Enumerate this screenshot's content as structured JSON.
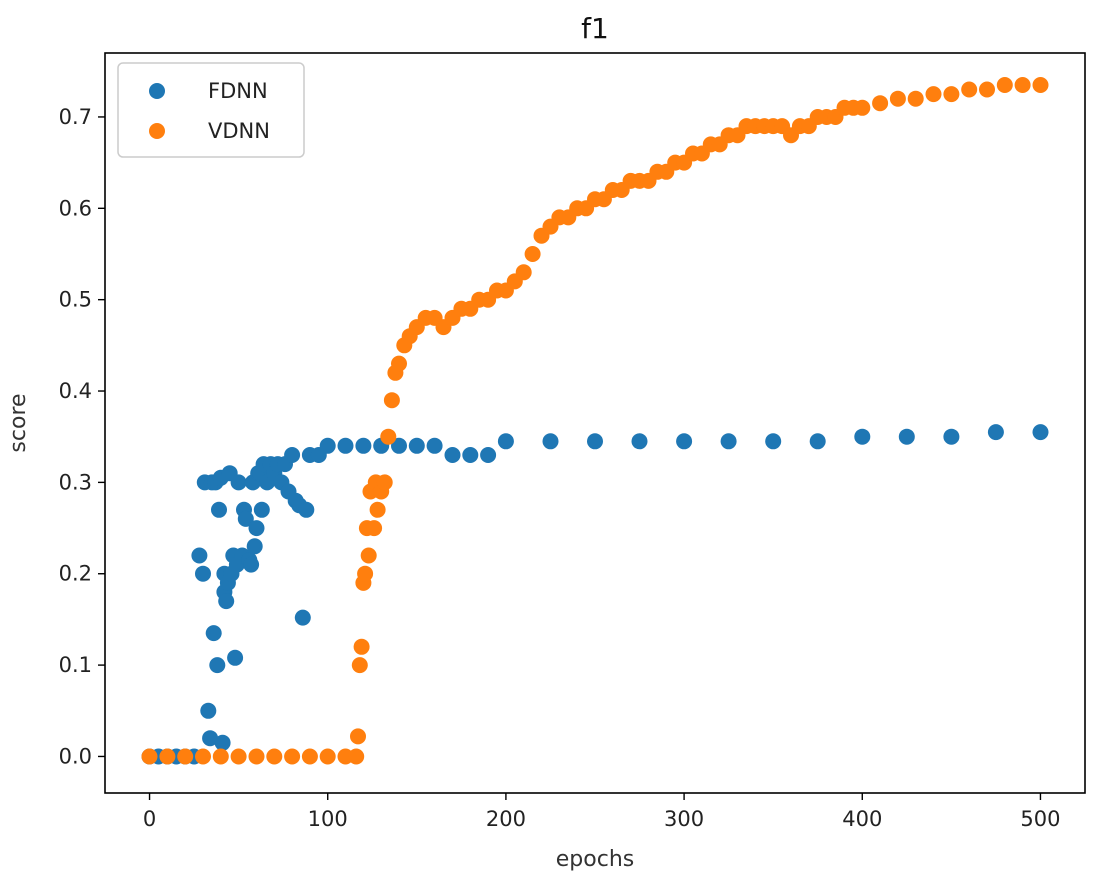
{
  "chart_data": {
    "type": "scatter",
    "title": "f1",
    "xlabel": "epochs",
    "ylabel": "score",
    "xlim": [
      -25,
      525
    ],
    "ylim": [
      -0.04,
      0.77
    ],
    "xticks": [
      0,
      100,
      200,
      300,
      400,
      500
    ],
    "yticks": [
      0.0,
      0.1,
      0.2,
      0.3,
      0.4,
      0.5,
      0.6,
      0.7
    ],
    "grid": false,
    "legend_position": "top-left",
    "series": [
      {
        "name": "FDNN",
        "color": "#1f77b4",
        "points": [
          [
            0,
            0
          ],
          [
            5,
            0
          ],
          [
            10,
            0
          ],
          [
            15,
            0
          ],
          [
            20,
            0
          ],
          [
            25,
            0
          ],
          [
            28,
            0.22
          ],
          [
            30,
            0.2
          ],
          [
            31,
            0.3
          ],
          [
            33,
            0.05
          ],
          [
            34,
            0.02
          ],
          [
            35,
            0.3
          ],
          [
            36,
            0.135
          ],
          [
            37,
            0.3
          ],
          [
            38,
            0.1
          ],
          [
            39,
            0.27
          ],
          [
            40,
            0.305
          ],
          [
            41,
            0.015
          ],
          [
            42,
            0.2
          ],
          [
            42,
            0.18
          ],
          [
            43,
            0.17
          ],
          [
            44,
            0.19
          ],
          [
            45,
            0.31
          ],
          [
            46,
            0.2
          ],
          [
            47,
            0.22
          ],
          [
            48,
            0.108
          ],
          [
            49,
            0.21
          ],
          [
            50,
            0.3
          ],
          [
            52,
            0.22
          ],
          [
            53,
            0.27
          ],
          [
            54,
            0.26
          ],
          [
            56,
            0.215
          ],
          [
            57,
            0.21
          ],
          [
            58,
            0.3
          ],
          [
            59,
            0.23
          ],
          [
            60,
            0.25
          ],
          [
            61,
            0.31
          ],
          [
            62,
            0.31
          ],
          [
            63,
            0.27
          ],
          [
            64,
            0.32
          ],
          [
            66,
            0.3
          ],
          [
            68,
            0.32
          ],
          [
            70,
            0.31
          ],
          [
            72,
            0.32
          ],
          [
            74,
            0.3
          ],
          [
            76,
            0.32
          ],
          [
            78,
            0.29
          ],
          [
            80,
            0.33
          ],
          [
            82,
            0.28
          ],
          [
            84,
            0.275
          ],
          [
            86,
            0.152
          ],
          [
            88,
            0.27
          ],
          [
            90,
            0.33
          ],
          [
            95,
            0.33
          ],
          [
            100,
            0.34
          ],
          [
            110,
            0.34
          ],
          [
            120,
            0.34
          ],
          [
            130,
            0.34
          ],
          [
            140,
            0.34
          ],
          [
            150,
            0.34
          ],
          [
            160,
            0.34
          ],
          [
            170,
            0.33
          ],
          [
            180,
            0.33
          ],
          [
            190,
            0.33
          ],
          [
            200,
            0.345
          ],
          [
            225,
            0.345
          ],
          [
            250,
            0.345
          ],
          [
            275,
            0.345
          ],
          [
            300,
            0.345
          ],
          [
            325,
            0.345
          ],
          [
            350,
            0.345
          ],
          [
            375,
            0.345
          ],
          [
            400,
            0.35
          ],
          [
            425,
            0.35
          ],
          [
            450,
            0.35
          ],
          [
            475,
            0.355
          ],
          [
            500,
            0.355
          ]
        ]
      },
      {
        "name": "VDNN",
        "color": "#ff7f0e",
        "points": [
          [
            0,
            0
          ],
          [
            10,
            0
          ],
          [
            20,
            0
          ],
          [
            30,
            0
          ],
          [
            40,
            0
          ],
          [
            50,
            0
          ],
          [
            60,
            0
          ],
          [
            70,
            0
          ],
          [
            80,
            0
          ],
          [
            90,
            0
          ],
          [
            100,
            0
          ],
          [
            110,
            0
          ],
          [
            116,
            0
          ],
          [
            117,
            0.022
          ],
          [
            118,
            0.1
          ],
          [
            119,
            0.12
          ],
          [
            120,
            0.19
          ],
          [
            121,
            0.2
          ],
          [
            122,
            0.25
          ],
          [
            123,
            0.22
          ],
          [
            124,
            0.29
          ],
          [
            126,
            0.25
          ],
          [
            127,
            0.3
          ],
          [
            128,
            0.27
          ],
          [
            130,
            0.29
          ],
          [
            132,
            0.3
          ],
          [
            134,
            0.35
          ],
          [
            136,
            0.39
          ],
          [
            138,
            0.42
          ],
          [
            140,
            0.43
          ],
          [
            143,
            0.45
          ],
          [
            146,
            0.46
          ],
          [
            150,
            0.47
          ],
          [
            155,
            0.48
          ],
          [
            160,
            0.48
          ],
          [
            165,
            0.47
          ],
          [
            170,
            0.48
          ],
          [
            175,
            0.49
          ],
          [
            180,
            0.49
          ],
          [
            185,
            0.5
          ],
          [
            190,
            0.5
          ],
          [
            195,
            0.51
          ],
          [
            200,
            0.51
          ],
          [
            205,
            0.52
          ],
          [
            210,
            0.53
          ],
          [
            215,
            0.55
          ],
          [
            220,
            0.57
          ],
          [
            225,
            0.58
          ],
          [
            230,
            0.59
          ],
          [
            235,
            0.59
          ],
          [
            240,
            0.6
          ],
          [
            245,
            0.6
          ],
          [
            250,
            0.61
          ],
          [
            255,
            0.61
          ],
          [
            260,
            0.62
          ],
          [
            265,
            0.62
          ],
          [
            270,
            0.63
          ],
          [
            275,
            0.63
          ],
          [
            280,
            0.63
          ],
          [
            285,
            0.64
          ],
          [
            290,
            0.64
          ],
          [
            295,
            0.65
          ],
          [
            300,
            0.65
          ],
          [
            305,
            0.66
          ],
          [
            310,
            0.66
          ],
          [
            315,
            0.67
          ],
          [
            320,
            0.67
          ],
          [
            325,
            0.68
          ],
          [
            330,
            0.68
          ],
          [
            335,
            0.69
          ],
          [
            340,
            0.69
          ],
          [
            345,
            0.69
          ],
          [
            350,
            0.69
          ],
          [
            355,
            0.69
          ],
          [
            360,
            0.68
          ],
          [
            365,
            0.69
          ],
          [
            370,
            0.69
          ],
          [
            375,
            0.7
          ],
          [
            380,
            0.7
          ],
          [
            385,
            0.7
          ],
          [
            390,
            0.71
          ],
          [
            395,
            0.71
          ],
          [
            400,
            0.71
          ],
          [
            410,
            0.715
          ],
          [
            420,
            0.72
          ],
          [
            430,
            0.72
          ],
          [
            440,
            0.725
          ],
          [
            450,
            0.725
          ],
          [
            460,
            0.73
          ],
          [
            470,
            0.73
          ],
          [
            480,
            0.735
          ],
          [
            490,
            0.735
          ],
          [
            500,
            0.735
          ]
        ]
      }
    ]
  }
}
